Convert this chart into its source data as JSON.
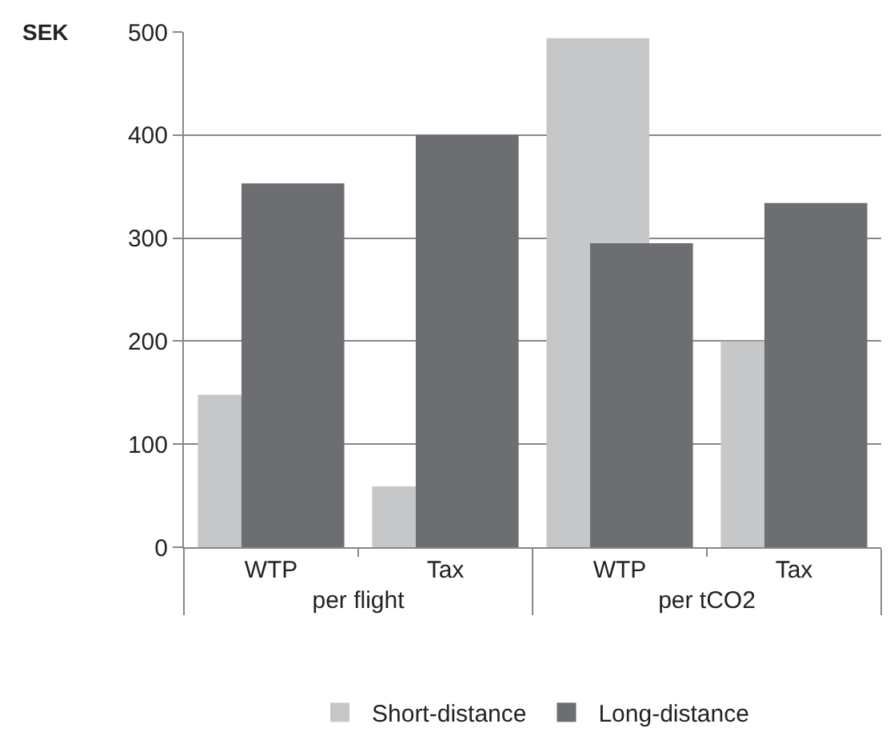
{
  "chart_data": {
    "type": "bar",
    "ylabel": "SEK",
    "categories": [
      "WTP",
      "Tax",
      "WTP",
      "Tax"
    ],
    "annotations": [
      "per flight",
      "per tCO2"
    ],
    "series": [
      {
        "name": "Short-distance",
        "color": "#c6c7c9",
        "values": [
          148,
          59,
          494,
          200
        ]
      },
      {
        "name": "Long-distance",
        "color": "#6d6e72",
        "values": [
          353,
          400,
          295,
          334
        ]
      }
    ],
    "ylim": [
      0,
      500
    ],
    "yticks": [
      0,
      100,
      200,
      300,
      400,
      500
    ],
    "grid": "y",
    "legend": "bottom"
  }
}
